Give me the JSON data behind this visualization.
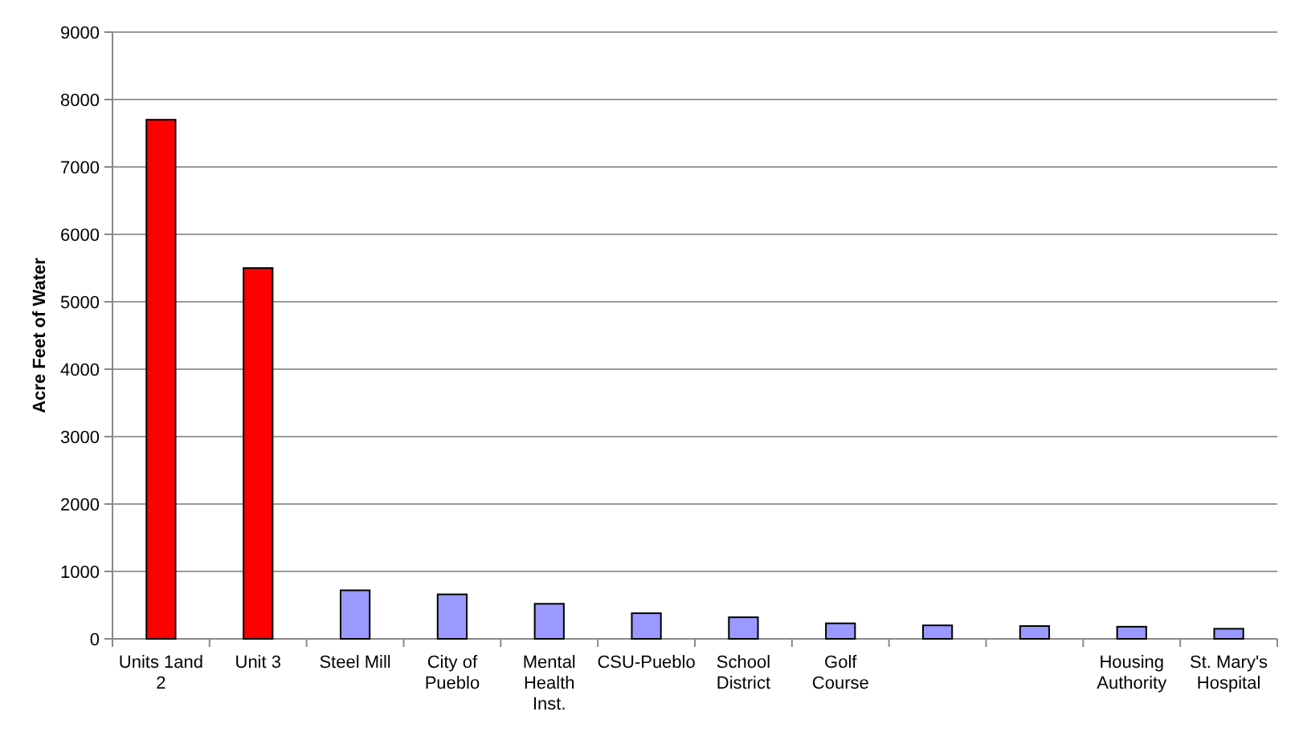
{
  "chart_data": {
    "type": "bar",
    "ylabel": "Acre Feet of Water",
    "categories": [
      "Units 1and 2",
      "Unit 3",
      "Steel Mill",
      "City of Pueblo",
      "Mental Health Inst.",
      "CSU-Pueblo",
      "School District",
      "Golf Course",
      null,
      null,
      "Housing Authority",
      "St. Mary's Hospital"
    ],
    "values": [
      7700,
      5500,
      720,
      660,
      520,
      380,
      320,
      230,
      200,
      190,
      180,
      150
    ],
    "colors": [
      "#ff0000",
      "#ff0000",
      "#9999ff",
      "#9999ff",
      "#9999ff",
      "#9999ff",
      "#9999ff",
      "#9999ff",
      "#9999ff",
      "#9999ff",
      "#9999ff",
      "#9999ff"
    ],
    "ylim": [
      0,
      9000
    ],
    "yticks": [
      0,
      1000,
      2000,
      3000,
      4000,
      5000,
      6000,
      7000,
      8000,
      9000
    ],
    "grid": "y"
  }
}
